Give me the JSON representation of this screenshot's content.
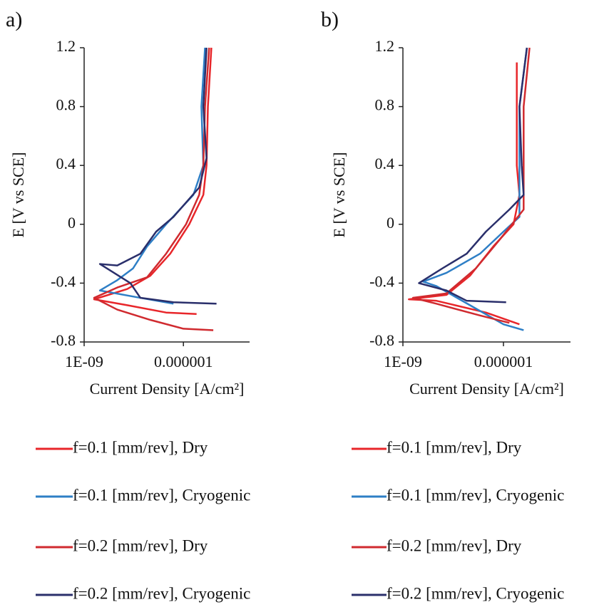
{
  "chart_data": [
    {
      "type": "line",
      "panel_label": "a)",
      "xlabel": "Current Density [A/cm²]",
      "ylabel": "E [V vs SCE]",
      "xscale": "log",
      "xlim": [
        1e-09,
        0.0001
      ],
      "xticks": [
        {
          "value": 1e-09,
          "label": "1E-09"
        },
        {
          "value": 1e-06,
          "label": "0.000001"
        }
      ],
      "ylim": [
        -0.8,
        1.2
      ],
      "yticks": [
        1.2,
        0.8,
        0.4,
        0,
        -0.4,
        -0.8
      ],
      "legend": "bottom",
      "series": [
        {
          "name": "f=0.1 [mm/rev], Dry",
          "color": "#e8262a",
          "x": [
            2.5e-06,
            3e-07,
            2e-08,
            2e-09,
            2e-08,
            1e-07,
            4e-07,
            1.5e-06,
            4e-06,
            5e-06,
            5.5e-06,
            7e-06
          ],
          "values": [
            -0.61,
            -0.6,
            -0.55,
            -0.51,
            -0.44,
            -0.35,
            -0.2,
            0,
            0.2,
            0.4,
            0.8,
            1.2
          ]
        },
        {
          "name": "f=0.1 [mm/rev], Cryogenic",
          "color": "#2e7fc6",
          "x": [
            5e-07,
            5e-08,
            3e-09,
            1e-08,
            3e-08,
            8e-08,
            3e-07,
            2e-06,
            4e-06,
            3.5e-06,
            4.5e-06
          ],
          "values": [
            -0.54,
            -0.5,
            -0.45,
            -0.38,
            -0.3,
            -0.15,
            0,
            0.2,
            0.4,
            0.8,
            1.2
          ]
        },
        {
          "name": "f=0.2 [mm/rev], Dry",
          "color": "#d02a2f",
          "x": [
            8e-06,
            1e-06,
            1e-07,
            1e-08,
            2e-09,
            1e-08,
            8e-08,
            3e-07,
            1.2e-06,
            3e-06,
            4e-06,
            4.5e-06,
            6e-06
          ],
          "values": [
            -0.72,
            -0.71,
            -0.65,
            -0.58,
            -0.5,
            -0.43,
            -0.36,
            -0.2,
            0,
            0.2,
            0.4,
            0.8,
            1.2
          ]
        },
        {
          "name": "f=0.2 [mm/rev], Cryogenic",
          "color": "#2a2f6b",
          "x": [
            1e-05,
            5e-07,
            5e-08,
            2.5e-08,
            3e-09,
            1e-08,
            5e-08,
            1.5e-07,
            5e-07,
            3e-06,
            5e-06,
            4e-06,
            5e-06
          ],
          "values": [
            -0.54,
            -0.53,
            -0.5,
            -0.4,
            -0.27,
            -0.28,
            -0.2,
            -0.05,
            0.05,
            0.25,
            0.45,
            0.8,
            1.2
          ]
        }
      ]
    },
    {
      "type": "line",
      "panel_label": "b)",
      "xlabel": "Current Density [A/cm²]",
      "ylabel": "E [V vs SCE]",
      "xscale": "log",
      "xlim": [
        1e-09,
        0.0001
      ],
      "xticks": [
        {
          "value": 1e-09,
          "label": "1E-09"
        },
        {
          "value": 1e-06,
          "label": "0.000001"
        }
      ],
      "ylim": [
        -0.8,
        1.2
      ],
      "yticks": [
        1.2,
        0.8,
        0.4,
        0,
        -0.4,
        -0.8
      ],
      "legend": "bottom",
      "series": [
        {
          "name": "f=0.1 [mm/rev], Dry",
          "color": "#e8262a",
          "x": [
            3e-06,
            3e-07,
            1e-08,
            1.5e-09,
            2e-08,
            1e-07,
            5e-07,
            2e-06,
            3e-06,
            2.5e-06,
            2.5e-06
          ],
          "values": [
            -0.68,
            -0.6,
            -0.52,
            -0.51,
            -0.48,
            -0.35,
            -0.15,
            0,
            0.2,
            0.4,
            1.1
          ]
        },
        {
          "name": "f=0.1 [mm/rev], Cryogenic",
          "color": "#2e7fc6",
          "x": [
            4e-06,
            1e-06,
            1e-07,
            1e-08,
            4e-09,
            2e-08,
            2e-07,
            1e-06,
            3e-06,
            3e-06,
            3e-06,
            5e-06
          ],
          "values": [
            -0.72,
            -0.68,
            -0.55,
            -0.42,
            -0.39,
            -0.33,
            -0.2,
            -0.05,
            0.05,
            0.4,
            0.8,
            1.2
          ]
        },
        {
          "name": "f=0.2 [mm/rev], Dry",
          "color": "#d02a2f",
          "x": [
            1.5e-06,
            2e-07,
            1e-08,
            2e-09,
            2e-08,
            1.5e-07,
            8e-07,
            4e-06,
            4e-06,
            4e-06,
            6e-06
          ],
          "values": [
            -0.67,
            -0.62,
            -0.54,
            -0.5,
            -0.47,
            -0.3,
            -0.1,
            0.1,
            0.4,
            0.8,
            1.2
          ]
        },
        {
          "name": "f=0.2 [mm/rev], Cryogenic",
          "color": "#2a2f6b",
          "x": [
            1.2e-06,
            8e-08,
            2e-08,
            3e-09,
            1.5e-08,
            8e-08,
            3e-07,
            1.5e-06,
            4e-06,
            3.5e-06,
            3e-06,
            5e-06
          ],
          "values": [
            -0.53,
            -0.52,
            -0.45,
            -0.4,
            -0.3,
            -0.2,
            -0.05,
            0.1,
            0.2,
            0.4,
            0.8,
            1.2
          ]
        }
      ]
    }
  ]
}
